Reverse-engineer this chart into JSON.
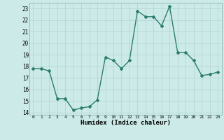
{
  "x": [
    0,
    1,
    2,
    3,
    4,
    5,
    6,
    7,
    8,
    9,
    10,
    11,
    12,
    13,
    14,
    15,
    16,
    17,
    18,
    19,
    20,
    21,
    22,
    23
  ],
  "y": [
    17.8,
    17.8,
    17.6,
    15.2,
    15.2,
    14.2,
    14.4,
    14.5,
    15.1,
    18.8,
    18.5,
    17.8,
    18.5,
    22.8,
    22.3,
    22.3,
    21.5,
    23.2,
    19.2,
    19.2,
    18.5,
    17.2,
    17.3,
    17.5
  ],
  "xlim": [
    -0.5,
    23.5
  ],
  "ylim": [
    13.8,
    23.5
  ],
  "yticks": [
    14,
    15,
    16,
    17,
    18,
    19,
    20,
    21,
    22,
    23
  ],
  "xticks": [
    0,
    1,
    2,
    3,
    4,
    5,
    6,
    7,
    8,
    9,
    10,
    11,
    12,
    13,
    14,
    15,
    16,
    17,
    18,
    19,
    20,
    21,
    22,
    23
  ],
  "xlabel": "Humidex (Indice chaleur)",
  "line_color": "#2d7d6e",
  "marker": "D",
  "marker_size": 2.0,
  "bg_color": "#cceae8",
  "grid_color": "#b0d4d0",
  "line_width": 1.0
}
